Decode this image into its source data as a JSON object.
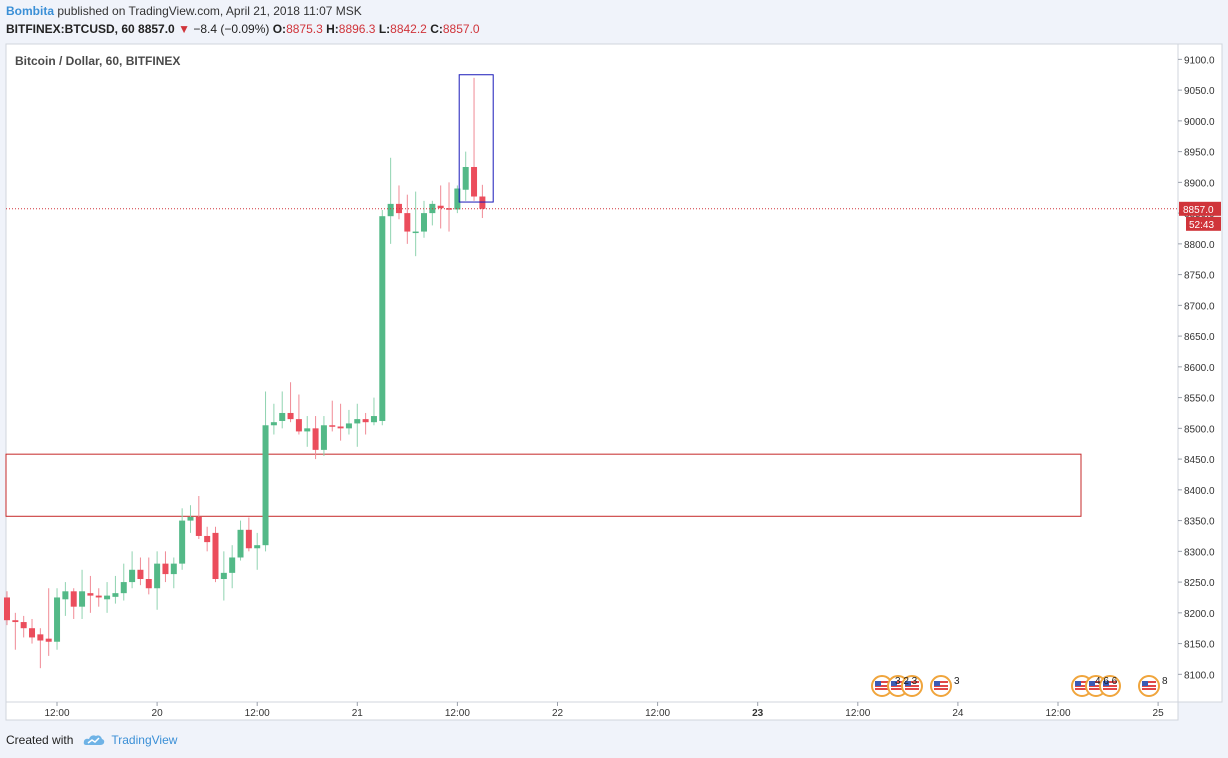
{
  "header": {
    "user": "Bombita",
    "published_text": "published on TradingView.com, April 21, 2018 11:07 MSK",
    "symbol": "BITFINEX:BTCUSD, 60",
    "last": "8857.0",
    "change": "−8.4 (−0.09%)",
    "o_label": "O:",
    "o_value": "8875.3",
    "h_label": "H:",
    "h_value": "8896.3",
    "l_label": "L:",
    "l_value": "8842.2",
    "c_label": "C:",
    "c_value": "8857.0"
  },
  "footer": {
    "created_with": "Created with",
    "brand": "TradingView"
  },
  "colors": {
    "up": "#53b987",
    "down": "#eb4d5c",
    "price_line": "#d0343a",
    "zone": "#c62828",
    "highlight": "#1a1ab8"
  },
  "chart_data": {
    "type": "candlestick",
    "title": "Bitcoin / Dollar, 60, BITFINEX",
    "ylim": [
      8055,
      9125
    ],
    "y_ticks": [
      "9100.0",
      "9050.0",
      "9000.0",
      "8950.0",
      "8900.0",
      "8850.0",
      "8800.0",
      "8750.0",
      "8700.0",
      "8650.0",
      "8600.0",
      "8550.0",
      "8500.0",
      "8450.0",
      "8400.0",
      "8350.0",
      "8300.0",
      "8250.0",
      "8200.0",
      "8150.0",
      "8100.0"
    ],
    "x_ticks": [
      "12:00",
      "20",
      "12:00",
      "21",
      "12:00",
      "22",
      "12:00",
      "23",
      "12:00",
      "24",
      "12:00",
      "25"
    ],
    "bold_x_ticks": [
      "23"
    ],
    "candles_ohlc": [
      [
        8225,
        8235,
        8180,
        8188
      ],
      [
        8188,
        8200,
        8140,
        8185
      ],
      [
        8185,
        8195,
        8160,
        8175
      ],
      [
        8175,
        8190,
        8150,
        8160
      ],
      [
        8165,
        8175,
        8110,
        8155
      ],
      [
        8158,
        8240,
        8130,
        8153
      ],
      [
        8153,
        8240,
        8140,
        8225
      ],
      [
        8222,
        8250,
        8195,
        8235
      ],
      [
        8235,
        8240,
        8190,
        8210
      ],
      [
        8210,
        8270,
        8190,
        8235
      ],
      [
        8232,
        8260,
        8200,
        8228
      ],
      [
        8228,
        8240,
        8210,
        8225
      ],
      [
        8222,
        8250,
        8200,
        8228
      ],
      [
        8226,
        8260,
        8215,
        8232
      ],
      [
        8232,
        8280,
        8220,
        8250
      ],
      [
        8250,
        8300,
        8240,
        8270
      ],
      [
        8270,
        8290,
        8245,
        8255
      ],
      [
        8255,
        8290,
        8230,
        8240
      ],
      [
        8240,
        8300,
        8205,
        8280
      ],
      [
        8280,
        8300,
        8250,
        8263
      ],
      [
        8263,
        8290,
        8240,
        8280
      ],
      [
        8280,
        8370,
        8270,
        8350
      ],
      [
        8350,
        8375,
        8330,
        8356
      ],
      [
        8356,
        8390,
        8320,
        8325
      ],
      [
        8325,
        8340,
        8300,
        8315
      ],
      [
        8330,
        8340,
        8250,
        8255
      ],
      [
        8255,
        8300,
        8220,
        8265
      ],
      [
        8265,
        8310,
        8240,
        8290
      ],
      [
        8290,
        8350,
        8285,
        8335
      ],
      [
        8335,
        8355,
        8300,
        8305
      ],
      [
        8305,
        8330,
        8270,
        8310
      ],
      [
        8310,
        8560,
        8300,
        8505
      ],
      [
        8505,
        8540,
        8490,
        8510
      ],
      [
        8512,
        8560,
        8500,
        8525
      ],
      [
        8525,
        8575,
        8510,
        8515
      ],
      [
        8515,
        8555,
        8490,
        8495
      ],
      [
        8495,
        8520,
        8470,
        8500
      ],
      [
        8500,
        8520,
        8450,
        8465
      ],
      [
        8465,
        8520,
        8455,
        8505
      ],
      [
        8505,
        8545,
        8495,
        8503
      ],
      [
        8503,
        8540,
        8480,
        8500
      ],
      [
        8500,
        8530,
        8490,
        8508
      ],
      [
        8508,
        8540,
        8470,
        8515
      ],
      [
        8515,
        8525,
        8490,
        8510
      ],
      [
        8510,
        8550,
        8505,
        8520
      ],
      [
        8512,
        8855,
        8505,
        8845
      ],
      [
        8845,
        8940,
        8800,
        8865
      ],
      [
        8865,
        8895,
        8840,
        8850
      ],
      [
        8850,
        8880,
        8800,
        8820
      ],
      [
        8820,
        8885,
        8780,
        8820
      ],
      [
        8820,
        8870,
        8810,
        8850
      ],
      [
        8850,
        8870,
        8830,
        8865
      ],
      [
        8862,
        8895,
        8825,
        8858
      ],
      [
        8858,
        8900,
        8820,
        8856
      ],
      [
        8856,
        8895,
        8850,
        8890
      ],
      [
        8888,
        8950,
        8870,
        8925
      ],
      [
        8925,
        9070,
        8870,
        8877
      ],
      [
        8877,
        8896,
        8842,
        8857
      ]
    ],
    "last_price": 8857.0,
    "last_price_label": "8857.0",
    "countdown_label": "52:43",
    "demand_zone": {
      "top": 8458,
      "bottom": 8357
    },
    "highlight_box": {
      "top": 9075,
      "bottom": 8868
    },
    "events": [
      {
        "label": "3 2 3"
      },
      {
        "label": "3"
      },
      {
        "label": "4 6 6"
      },
      {
        "label": "8"
      }
    ]
  }
}
